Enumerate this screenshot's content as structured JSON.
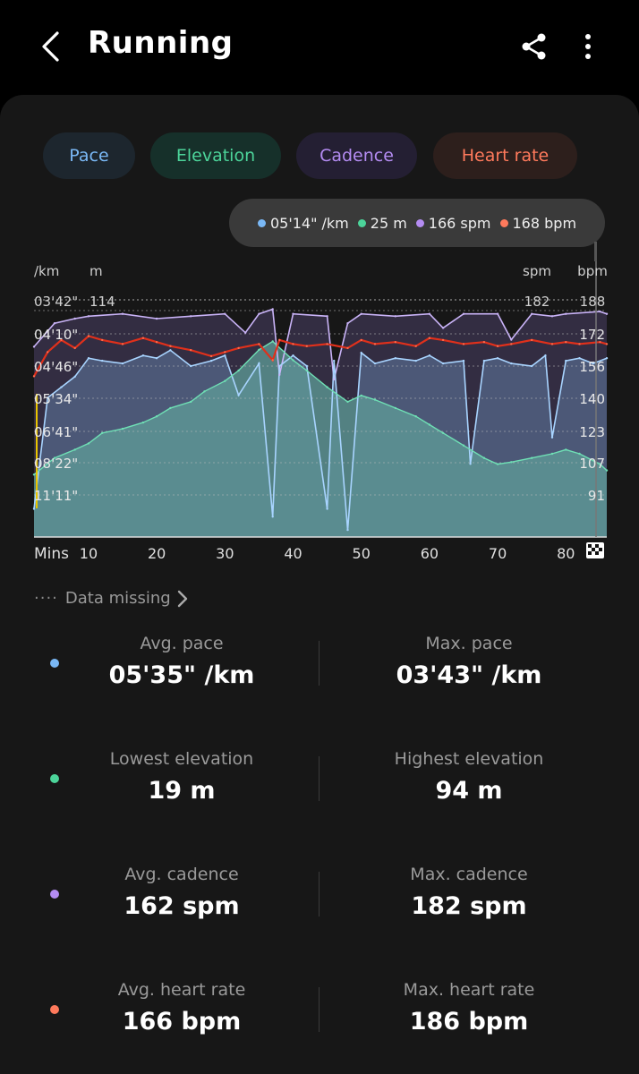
{
  "app": {
    "title": "Running"
  },
  "icons": {
    "back": "chevron-left-icon",
    "share": "share-icon",
    "more": "more-vertical-icon",
    "finish": "checkered-flag-icon",
    "missing": "chevron-right-icon"
  },
  "colors": {
    "pace": "#7ab8f5",
    "elevation": "#4cd49a",
    "cadence": "#b48cf2",
    "heart_rate": "#ff7a5c",
    "background": "#000000",
    "card": "#171717"
  },
  "tabs": [
    {
      "label": "Pace"
    },
    {
      "label": "Elevation"
    },
    {
      "label": "Cadence"
    },
    {
      "label": "Heart rate"
    }
  ],
  "tooltip": {
    "pace": "05'14\" /km",
    "elevation": "25 m",
    "cadence": "166 spm",
    "heart_rate": "168 bpm"
  },
  "chart_data": {
    "type": "line",
    "x_axis_label": "Mins",
    "x_ticks": [
      10,
      20,
      30,
      40,
      50,
      60,
      70,
      80
    ],
    "x_range": [
      2,
      86
    ],
    "left_axis": {
      "units": [
        "/km",
        "m"
      ],
      "pace_ticks": [
        "03'42\"",
        "04'10\"",
        "04'46\"",
        "05'34\"",
        "06'41\"",
        "08'22\"",
        "11'11\""
      ],
      "elevation_top": "114"
    },
    "right_axis": {
      "units": [
        "spm",
        "bpm"
      ],
      "cadence_top": "182",
      "heart_rate_ticks": [
        "188",
        "172",
        "156",
        "140",
        "123",
        "107",
        "91"
      ]
    },
    "series": [
      {
        "name": "Pace",
        "unit": "/km",
        "x": [
          2,
          4,
          6,
          8,
          10,
          12,
          15,
          18,
          20,
          22,
          25,
          28,
          30,
          32,
          35,
          37,
          38,
          40,
          42,
          45,
          46,
          48,
          50,
          52,
          55,
          58,
          60,
          62,
          65,
          66,
          68,
          70,
          72,
          75,
          77,
          78,
          80,
          82,
          84,
          86
        ],
        "values": [
          11.2,
          7.0,
          6.6,
          6.2,
          5.5,
          5.6,
          5.7,
          5.4,
          5.5,
          5.2,
          5.8,
          5.6,
          5.4,
          6.9,
          5.7,
          11.5,
          5.8,
          5.4,
          5.8,
          11.2,
          5.6,
          12.0,
          5.3,
          5.7,
          5.5,
          5.6,
          5.4,
          5.7,
          5.6,
          9.5,
          5.6,
          5.5,
          5.7,
          5.8,
          5.4,
          8.5,
          5.6,
          5.5,
          5.7,
          5.5
        ]
      },
      {
        "name": "Elevation",
        "unit": "m",
        "x": [
          2,
          5,
          8,
          10,
          12,
          15,
          18,
          20,
          22,
          25,
          27,
          30,
          32,
          35,
          37,
          40,
          42,
          45,
          48,
          50,
          52,
          55,
          58,
          60,
          62,
          65,
          68,
          70,
          72,
          75,
          78,
          80,
          82,
          85,
          86
        ],
        "values": [
          30,
          38,
          42,
          45,
          50,
          52,
          55,
          58,
          62,
          65,
          70,
          75,
          80,
          90,
          94,
          85,
          80,
          72,
          65,
          68,
          66,
          62,
          58,
          54,
          50,
          44,
          38,
          35,
          36,
          38,
          40,
          42,
          40,
          35,
          32
        ]
      },
      {
        "name": "Cadence",
        "unit": "spm",
        "x": [
          2,
          5,
          8,
          10,
          15,
          20,
          25,
          30,
          33,
          35,
          37,
          38,
          40,
          45,
          46,
          48,
          50,
          55,
          60,
          62,
          65,
          70,
          72,
          75,
          78,
          80,
          85,
          86
        ],
        "values": [
          162,
          172,
          174,
          175,
          176,
          174,
          175,
          176,
          168,
          176,
          178,
          150,
          176,
          175,
          148,
          172,
          176,
          175,
          176,
          170,
          176,
          176,
          165,
          176,
          175,
          176,
          177,
          176
        ]
      },
      {
        "name": "Heart rate",
        "unit": "bpm",
        "x": [
          2,
          4,
          6,
          8,
          10,
          12,
          15,
          18,
          20,
          22,
          25,
          28,
          30,
          32,
          35,
          37,
          38,
          40,
          42,
          45,
          48,
          50,
          52,
          55,
          58,
          60,
          62,
          65,
          68,
          70,
          72,
          75,
          78,
          80,
          82,
          85,
          86
        ],
        "values": [
          150,
          162,
          168,
          164,
          170,
          168,
          166,
          169,
          167,
          165,
          163,
          160,
          162,
          164,
          166,
          158,
          168,
          166,
          165,
          166,
          164,
          168,
          166,
          167,
          165,
          169,
          168,
          166,
          167,
          165,
          166,
          168,
          166,
          167,
          166,
          167,
          166
        ]
      }
    ]
  },
  "data_missing_label": "Data missing",
  "stats": [
    {
      "left_label": "Avg. pace",
      "left_value": "05'35\" /km",
      "right_label": "Max. pace",
      "right_value": "03'43\" /km"
    },
    {
      "left_label": "Lowest elevation",
      "left_value": "19 m",
      "right_label": "Highest elevation",
      "right_value": "94 m"
    },
    {
      "left_label": "Avg. cadence",
      "left_value": "162 spm",
      "right_label": "Max. cadence",
      "right_value": "182 spm"
    },
    {
      "left_label": "Avg. heart rate",
      "left_value": "166 bpm",
      "right_label": "Max. heart rate",
      "right_value": "186 bpm"
    }
  ]
}
